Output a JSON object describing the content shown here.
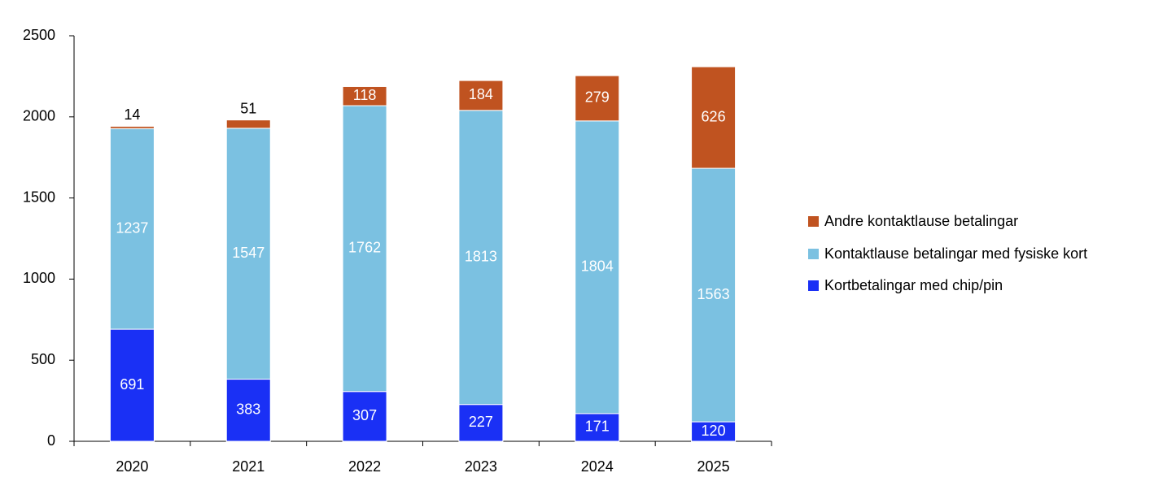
{
  "chart_data": {
    "type": "stacked_bar",
    "categories": [
      "2020",
      "2021",
      "2022",
      "2023",
      "2024",
      "2025"
    ],
    "series": [
      {
        "name": "Kortbetalingar med chip/pin",
        "color": "#1a30f5",
        "values": [
          691,
          383,
          307,
          227,
          171,
          120
        ]
      },
      {
        "name": "Kontaktlause betalingar med fysiske kort",
        "color": "#7bc1e1",
        "values": [
          1237,
          1547,
          1762,
          1813,
          1804,
          1563
        ]
      },
      {
        "name": "Andre kontaktlause betalingar",
        "color": "#c05320",
        "values": [
          14,
          51,
          118,
          184,
          279,
          626
        ]
      }
    ],
    "ylim": [
      0,
      2500
    ],
    "yticks": [
      0,
      500,
      1000,
      1500,
      2000,
      2500
    ],
    "grid": false,
    "legend": "right"
  }
}
